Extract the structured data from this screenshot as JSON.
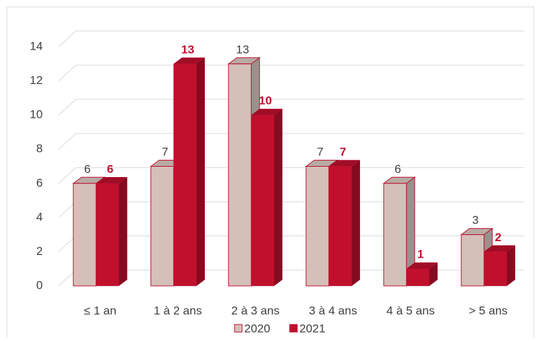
{
  "chart_data": {
    "type": "bar3d",
    "categories": [
      "≤ 1 an",
      "1 à 2 ans",
      "2 à 3 ans",
      "3 à 4 ans",
      "4 à 5 ans",
      "> 5 ans"
    ],
    "series": [
      {
        "name": "2020",
        "color": "#d4c0b9",
        "values": [
          6,
          7,
          13,
          7,
          6,
          3
        ]
      },
      {
        "name": "2021",
        "color": "#c0102e",
        "values": [
          6,
          13,
          10,
          7,
          1,
          2
        ]
      }
    ],
    "ylim": [
      0,
      14
    ],
    "yticks": [
      0,
      2,
      4,
      6,
      8,
      10,
      12,
      14
    ],
    "grid": true,
    "legend": "bottom"
  }
}
